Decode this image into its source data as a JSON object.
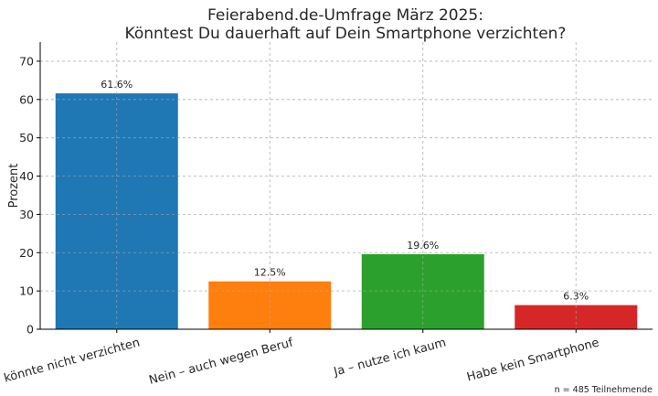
{
  "chart_data": {
    "type": "bar",
    "title_lines": [
      "Feierabend.de-Umfrage März 2025:",
      "Könntest Du dauerhaft auf Dein Smartphone verzichten?"
    ],
    "xlabel": "",
    "ylabel": "Prozent",
    "ylim": [
      0,
      75
    ],
    "yticks": [
      0,
      10,
      20,
      30,
      40,
      50,
      60,
      70
    ],
    "grid": true,
    "categories": [
      "Nein – könnte nicht verzichten",
      "Nein – auch wegen Beruf",
      "Ja – nutze ich kaum",
      "Habe kein Smartphone"
    ],
    "values": [
      61.6,
      12.5,
      19.6,
      6.3
    ],
    "value_labels": [
      "61.6%",
      "12.5%",
      "19.6%",
      "6.3%"
    ],
    "colors": [
      "#1f77b4",
      "#ff7f0e",
      "#2ca02c",
      "#d62728"
    ],
    "footnote": "n = 485 Teilnehmende"
  }
}
